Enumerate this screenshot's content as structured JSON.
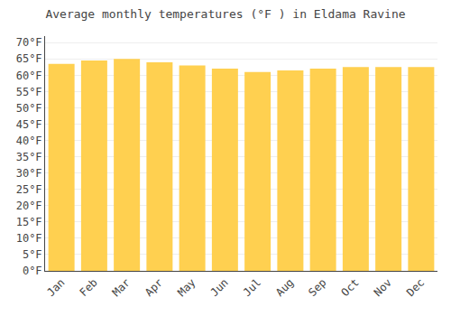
{
  "chart_data": {
    "type": "bar",
    "title": "Average monthly temperatures (°F ) in Eldama Ravine",
    "categories": [
      "Jan",
      "Feb",
      "Mar",
      "Apr",
      "May",
      "Jun",
      "Jul",
      "Aug",
      "Sep",
      "Oct",
      "Nov",
      "Dec"
    ],
    "values": [
      63.5,
      64.5,
      65.0,
      64.0,
      63.0,
      62.0,
      61.0,
      61.5,
      62.0,
      62.5,
      62.5,
      62.5
    ],
    "color": "#FFD050",
    "ylim": [
      0,
      72
    ],
    "yticks": [
      {
        "value": 0,
        "label": "0°F"
      },
      {
        "value": 5,
        "label": "5°F"
      },
      {
        "value": 10,
        "label": "10°F"
      },
      {
        "value": 15,
        "label": "15°F"
      },
      {
        "value": 20,
        "label": "20°F"
      },
      {
        "value": 25,
        "label": "25°F"
      },
      {
        "value": 30,
        "label": "30°F"
      },
      {
        "value": 35,
        "label": "35°F"
      },
      {
        "value": 40,
        "label": "40°F"
      },
      {
        "value": 45,
        "label": "45°F"
      },
      {
        "value": 50,
        "label": "50°F"
      },
      {
        "value": 55,
        "label": "55°F"
      },
      {
        "value": 60,
        "label": "60°F"
      },
      {
        "value": 65,
        "label": "65°F"
      },
      {
        "value": 70,
        "label": "70°F"
      }
    ],
    "grid": true
  }
}
